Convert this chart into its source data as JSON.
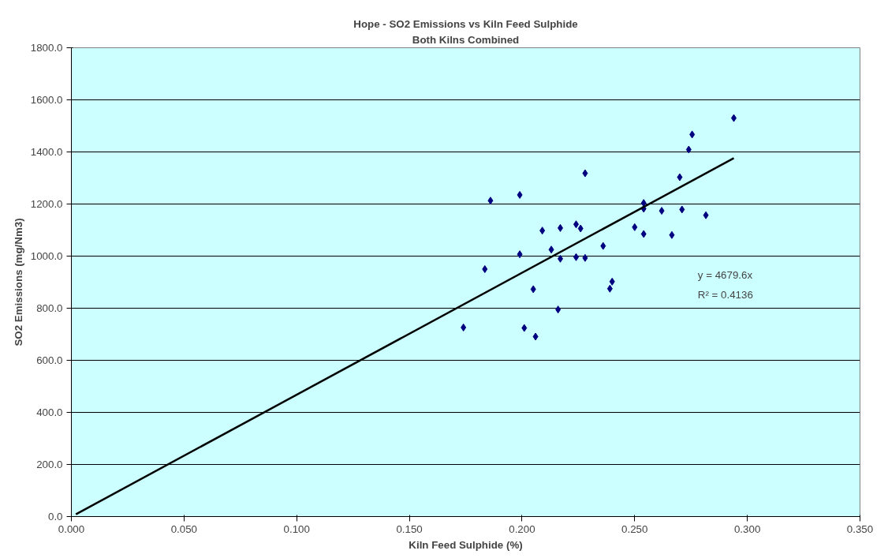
{
  "chart_data": {
    "type": "scatter",
    "title": "Hope - SO2 Emissions vs Kiln Feed Sulphide",
    "subtitle": "Both Kilns Combined",
    "xlabel": "Kiln Feed Sulphide (%)",
    "ylabel": "SO2 Emissions (mg/Nm3)",
    "xlim": [
      0,
      0.35
    ],
    "ylim": [
      0,
      1800
    ],
    "xticks": [
      {
        "value": 0,
        "label": "0.000"
      },
      {
        "value": 0.05,
        "label": "0.050"
      },
      {
        "value": 0.1,
        "label": "0.100"
      },
      {
        "value": 0.15,
        "label": "0.150"
      },
      {
        "value": 0.2,
        "label": "0.200"
      },
      {
        "value": 0.25,
        "label": "0.250"
      },
      {
        "value": 0.3,
        "label": "0.300"
      },
      {
        "value": 0.35,
        "label": "0.350"
      }
    ],
    "yticks": [
      {
        "value": 0,
        "label": "0.0"
      },
      {
        "value": 200,
        "label": "200.0"
      },
      {
        "value": 400,
        "label": "400.0"
      },
      {
        "value": 600,
        "label": "600.0"
      },
      {
        "value": 800,
        "label": "800.0"
      },
      {
        "value": 1000,
        "label": "1000.0"
      },
      {
        "value": 1200,
        "label": "1200.0"
      },
      {
        "value": 1400,
        "label": "1400.0"
      },
      {
        "value": 1600,
        "label": "1600.0"
      },
      {
        "value": 1800,
        "label": "1800.0"
      }
    ],
    "grid": "y",
    "series": [
      {
        "marker": "diamond",
        "color": "#000080",
        "x": [
          0.174,
          0.1835,
          0.186,
          0.199,
          0.199,
          0.201,
          0.205,
          0.206,
          0.209,
          0.213,
          0.216,
          0.217,
          0.217,
          0.224,
          0.226,
          0.224,
          0.228,
          0.228,
          0.236,
          0.239,
          0.24,
          0.25,
          0.254,
          0.254,
          0.254,
          0.262,
          0.2665,
          0.27,
          0.271,
          0.274,
          0.2755,
          0.2816,
          0.294
        ],
        "values": [
          726,
          950,
          1213,
          1235,
          1007,
          724,
          873,
          691,
          1098,
          1025,
          795,
          1108,
          990,
          1122,
          1106,
          996,
          1318,
          993,
          1039,
          875,
          902,
          1111,
          1085,
          1204,
          1182,
          1174,
          1081,
          1303,
          1179,
          1409,
          1467,
          1157,
          1530
        ]
      },
      {
        "type": "line",
        "color": "#000000",
        "x": [
          0.002,
          0.294
        ],
        "values": [
          9,
          1376
        ],
        "line_style": "solid"
      }
    ],
    "annotations": [
      "y = 4679.6x",
      "R² = 0.4136"
    ]
  }
}
